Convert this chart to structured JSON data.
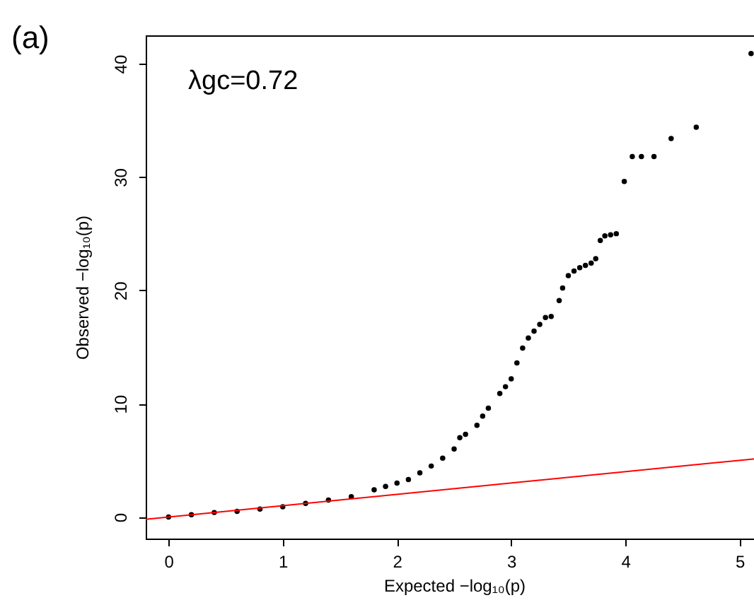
{
  "chart_data": {
    "type": "scatter",
    "title": "(a)",
    "xlabel": "Expected  −log₁₀(p)",
    "ylabel": "Observed  −log₁₀(p)",
    "annotations": [
      "λgc=0.72"
    ],
    "xlim": [
      -0.2,
      5.2
    ],
    "ylim": [
      -1.9,
      42.5
    ],
    "xticks": [
      0,
      1,
      2,
      3,
      4,
      5
    ],
    "yticks": [
      0,
      10,
      20,
      30,
      40
    ],
    "grid": false,
    "series": [
      {
        "color": "#000000",
        "marker": "circle",
        "x": [
          0,
          0.2,
          0.4,
          0.6,
          0.8,
          1.0,
          1.2,
          1.4,
          1.6,
          1.8,
          1.9,
          2.0,
          2.1,
          2.2,
          2.3,
          2.4,
          2.5,
          2.55,
          2.6,
          2.7,
          2.75,
          2.8,
          2.9,
          2.95,
          3.0,
          3.05,
          3.1,
          3.15,
          3.2,
          3.25,
          3.3,
          3.35,
          3.42,
          3.45,
          3.5,
          3.55,
          3.6,
          3.65,
          3.7,
          3.74,
          3.78,
          3.82,
          3.87,
          3.92,
          3.99,
          4.06,
          4.14,
          4.25,
          4.4,
          4.62,
          5.1
        ],
        "values": [
          0,
          0.2,
          0.4,
          0.5,
          0.7,
          0.9,
          1.2,
          1.5,
          1.8,
          2.4,
          2.7,
          3.0,
          3.3,
          3.9,
          4.5,
          5.2,
          6.0,
          7.0,
          7.3,
          8.1,
          8.9,
          9.6,
          10.9,
          11.5,
          12.2,
          13.6,
          14.9,
          15.8,
          16.4,
          17.0,
          17.6,
          17.7,
          19.1,
          20.2,
          21.3,
          21.7,
          22.0,
          22.2,
          22.4,
          22.8,
          24.4,
          24.8,
          24.9,
          25.0,
          29.6,
          31.8,
          31.8,
          31.8,
          33.4,
          34.4,
          40.9
        ]
      },
      {
        "type": "line",
        "color": "#ff0000",
        "line_style": "solid",
        "x": [
          -0.2,
          5.2
        ],
        "values": [
          -0.2,
          5.2
        ]
      }
    ]
  }
}
